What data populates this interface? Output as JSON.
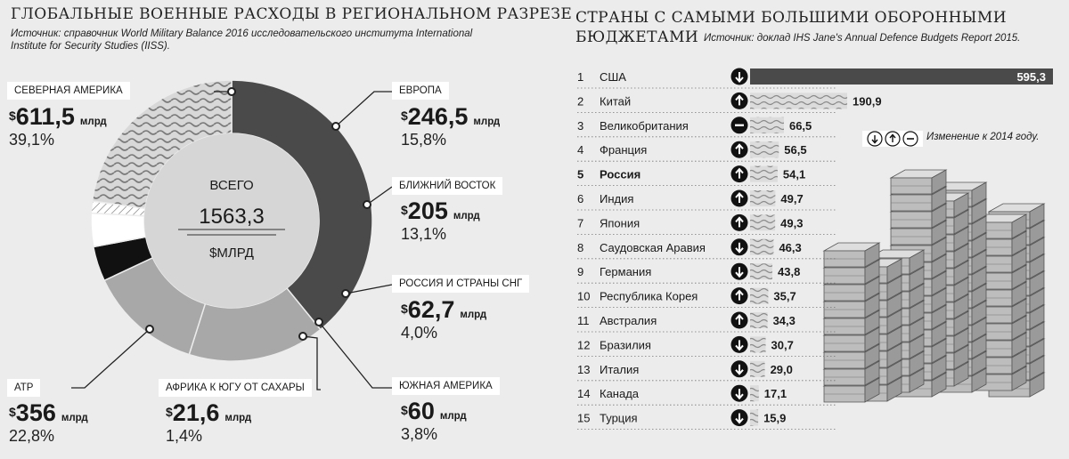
{
  "left": {
    "title": "ГЛОБАЛЬНЫЕ ВОЕННЫЕ РАСХОДЫ В РЕГИОНАЛЬНОМ РАЗРЕЗЕ",
    "source_line1": "Источник: справочник World Military Balance 2016 исследовательского института International",
    "source_line2": "Institute for Security Studies (IISS).",
    "center_label_top": "ВСЕГО",
    "center_value": "1563,3",
    "center_unit": "$МЛРД",
    "currency": "$",
    "unit": "млрд",
    "regions": [
      {
        "label": "СЕВЕРНАЯ АМЕРИКА",
        "value": "611,5",
        "pct": "39,1%"
      },
      {
        "label": "ЕВРОПА",
        "value": "246,5",
        "pct": "15,8%"
      },
      {
        "label": "БЛИЖНИЙ ВОСТОК",
        "value": "205",
        "pct": "13,1%"
      },
      {
        "label": "РОССИЯ И СТРАНЫ СНГ",
        "value": "62,7",
        "pct": "4,0%"
      },
      {
        "label": "ЮЖНАЯ АМЕРИКА",
        "value": "60",
        "pct": "3,8%"
      },
      {
        "label": "АФРИКА К ЮГУ ОТ САХАРЫ",
        "value": "21,6",
        "pct": "1,4%"
      },
      {
        "label": "АТР",
        "value": "356",
        "pct": "22,8%"
      }
    ]
  },
  "right": {
    "title_line1": "СТРАНЫ С САМЫМИ БОЛЬШИМИ ОБОРОННЫМИ",
    "title_line2": "БЮДЖЕТАМИ",
    "source": "Источник: доклад IHS Jane's Annual Defence Budgets Report 2015.",
    "legend_text": "Изменение к 2014 году."
  },
  "colors": {
    "background": "#ececec",
    "dark": "#4a4a4a",
    "mid": "#a8a8a8",
    "light": "#c9c9c9",
    "russia": "#111111"
  },
  "chart_data": [
    {
      "type": "pie",
      "title": "ГЛОБАЛЬНЫЕ ВОЕННЫЕ РАСХОДЫ В РЕГИОНАЛЬНОМ РАЗРЕЗЕ",
      "total": 1563.3,
      "slices": [
        {
          "name": "СЕВЕРНАЯ АМЕРИКА",
          "value": 611.5,
          "pct": 39.1
        },
        {
          "name": "ЕВРОПА",
          "value": 246.5,
          "pct": 15.8
        },
        {
          "name": "БЛИЖНИЙ ВОСТОК",
          "value": 205,
          "pct": 13.1
        },
        {
          "name": "РОССИЯ И СТРАНЫ СНГ",
          "value": 62.7,
          "pct": 4.0
        },
        {
          "name": "ЮЖНАЯ АМЕРИКА",
          "value": 60,
          "pct": 3.8
        },
        {
          "name": "АФРИКА К ЮГУ ОТ САХАРЫ",
          "value": 21.6,
          "pct": 1.4
        },
        {
          "name": "АТР",
          "value": 356,
          "pct": 22.8
        }
      ]
    },
    {
      "type": "bar",
      "title": "СТРАНЫ С САМЫМИ БОЛЬШИМИ ОБОРОННЫМИ БЮДЖЕТАМИ",
      "rows": [
        {
          "rank": "1",
          "country": "США",
          "value": 595.3,
          "label": "595,3",
          "change": "down"
        },
        {
          "rank": "2",
          "country": "Китай",
          "value": 190.9,
          "label": "190,9",
          "change": "up"
        },
        {
          "rank": "3",
          "country": "Великобритания",
          "value": 66.5,
          "label": "66,5",
          "change": "same"
        },
        {
          "rank": "4",
          "country": "Франция",
          "value": 56.5,
          "label": "56,5",
          "change": "up"
        },
        {
          "rank": "5",
          "country": "Россия",
          "value": 54.1,
          "label": "54,1",
          "change": "up",
          "highlight": true
        },
        {
          "rank": "6",
          "country": "Индия",
          "value": 49.7,
          "label": "49,7",
          "change": "up"
        },
        {
          "rank": "7",
          "country": "Япония",
          "value": 49.3,
          "label": "49,3",
          "change": "up"
        },
        {
          "rank": "8",
          "country": "Саудовская Аравия",
          "value": 46.3,
          "label": "46,3",
          "change": "down"
        },
        {
          "rank": "9",
          "country": "Германия",
          "value": 43.8,
          "label": "43,8",
          "change": "down"
        },
        {
          "rank": "10",
          "country": "Республика Корея",
          "value": 35.7,
          "label": "35,7",
          "change": "up"
        },
        {
          "rank": "11",
          "country": "Австралия",
          "value": 34.3,
          "label": "34,3",
          "change": "up"
        },
        {
          "rank": "12",
          "country": "Бразилия",
          "value": 30.7,
          "label": "30,7",
          "change": "down"
        },
        {
          "rank": "13",
          "country": "Италия",
          "value": 29.0,
          "label": "29,0",
          "change": "down"
        },
        {
          "rank": "14",
          "country": "Канада",
          "value": 17.1,
          "label": "17,1",
          "change": "down"
        },
        {
          "rank": "15",
          "country": "Турция",
          "value": 15.9,
          "label": "15,9",
          "change": "down"
        }
      ]
    }
  ]
}
